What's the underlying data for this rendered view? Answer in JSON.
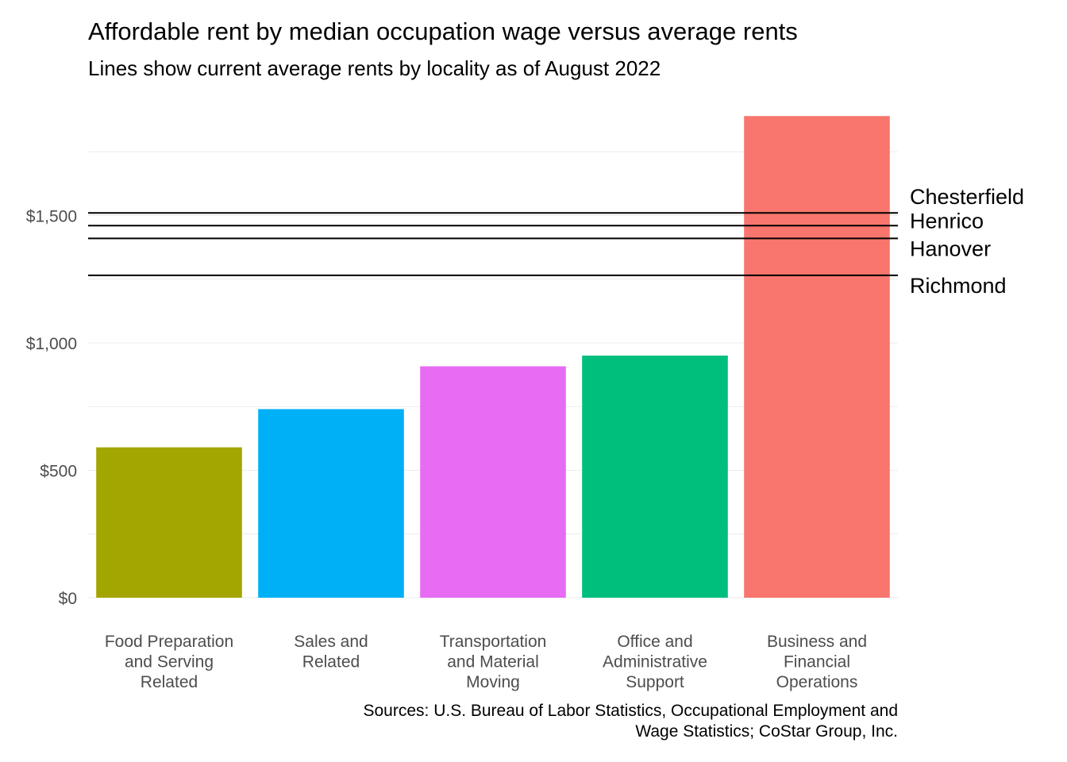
{
  "title": "Affordable rent by median occupation wage versus average rents",
  "subtitle": "Lines show current average rents by locality as of August 2022",
  "caption": {
    "line1": "Sources: U.S. Bureau of Labor Statistics, Occupational Employment and",
    "line2": "Wage Statistics; CoStar Group, Inc."
  },
  "chart_data": {
    "type": "bar",
    "categories": [
      [
        "Food Preparation",
        "and Serving",
        "Related"
      ],
      [
        "Sales and",
        "Related"
      ],
      [
        "Transportation",
        "and Material",
        "Moving"
      ],
      [
        "Office and",
        "Administrative",
        "Support"
      ],
      [
        "Business and",
        "Financial",
        "Operations"
      ]
    ],
    "values": [
      590,
      740,
      908,
      950,
      1890
    ],
    "colors": [
      "#A3A500",
      "#00B0F6",
      "#E76BF3",
      "#00BF7D",
      "#F8766D"
    ],
    "ylim": [
      0,
      1900
    ],
    "yticks": [
      0,
      500,
      1000,
      1500
    ],
    "ytick_labels": [
      "$0",
      "$500",
      "$1,000",
      "$1,500"
    ],
    "grid": true,
    "reference_lines": [
      {
        "label": "Chesterfield",
        "value": 1510
      },
      {
        "label": "Henrico",
        "value": 1460
      },
      {
        "label": "Hanover",
        "value": 1410
      },
      {
        "label": "Richmond",
        "value": 1265
      }
    ]
  }
}
